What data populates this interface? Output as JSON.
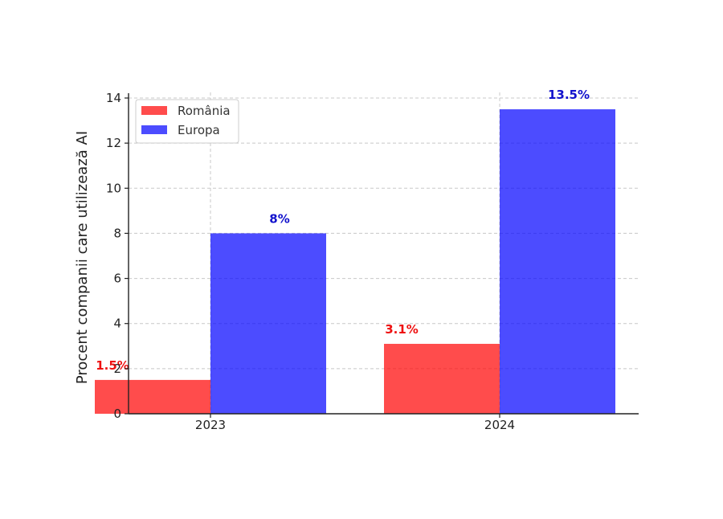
{
  "chart_data": {
    "type": "bar",
    "title": "",
    "xlabel": "",
    "ylabel": "Procent companii care utilizează AI",
    "categories": [
      "2023",
      "2024"
    ],
    "ylim": [
      0,
      14
    ],
    "yticks": [
      0,
      2,
      4,
      6,
      8,
      10,
      12,
      14
    ],
    "grid": true,
    "legend_position": "top-left",
    "series": [
      {
        "name": "România",
        "values": [
          1.5,
          3.1
        ],
        "labels": [
          "1.5%",
          "3.1%"
        ],
        "color": "#ff0000",
        "label_color": "#ee1111"
      },
      {
        "name": "Europa",
        "values": [
          8,
          13.5
        ],
        "labels": [
          "8%",
          "13.5%"
        ],
        "color": "#0000ff",
        "label_color": "#1111cc"
      }
    ]
  }
}
